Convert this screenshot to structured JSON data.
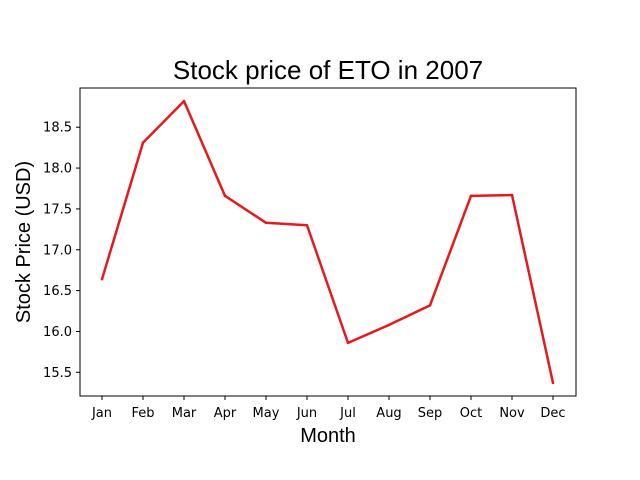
{
  "chart_data": {
    "type": "line",
    "title": "Stock price of ETO in 2007",
    "xlabel": "Month",
    "ylabel": "Stock Price (USD)",
    "categories": [
      "Jan",
      "Feb",
      "Mar",
      "Apr",
      "May",
      "Jun",
      "Jul",
      "Aug",
      "Sep",
      "Oct",
      "Nov",
      "Dec"
    ],
    "series": [
      {
        "values": [
          16.64,
          18.31,
          18.82,
          17.66,
          17.33,
          17.3,
          15.86,
          16.08,
          16.32,
          17.66,
          17.67,
          15.37
        ],
        "color": "#e41a1c"
      }
    ],
    "yticks": [
      "15.5",
      "16.0",
      "16.5",
      "17.0",
      "17.5",
      "18.0",
      "18.5"
    ],
    "ylim": [
      15.21,
      18.98
    ],
    "grid": false,
    "legend": "none"
  }
}
